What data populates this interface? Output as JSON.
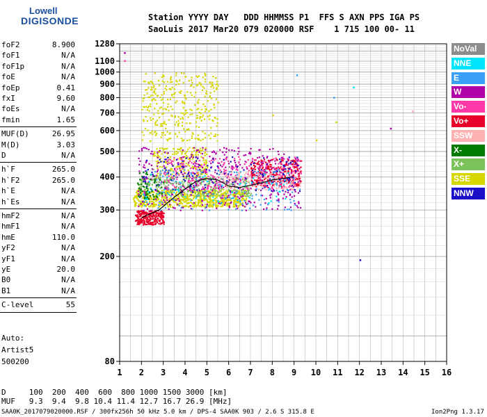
{
  "logo": {
    "line1": "Lowell",
    "line2": "DIGISONDE"
  },
  "header": {
    "row1": "Station YYYY DAY   DDD HHMMSS P1  FFS S AXN PPS IGA PS",
    "row2": "SaoLuis 2017 Mar20 079 020000 RSF    1 715 100 00- 11"
  },
  "params": [
    {
      "k": "foF2",
      "v": "8.900"
    },
    {
      "k": "foF1",
      "v": "N/A"
    },
    {
      "k": "foF1p",
      "v": "N/A"
    },
    {
      "k": "foE",
      "v": "N/A"
    },
    {
      "k": "foEp",
      "v": "0.41"
    },
    {
      "k": "fxI",
      "v": "9.60"
    },
    {
      "k": "foEs",
      "v": "N/A"
    },
    {
      "k": "fmin",
      "v": "1.65"
    },
    {
      "k": "MUF(D)",
      "v": "26.95"
    },
    {
      "k": "M(D)",
      "v": "3.03"
    },
    {
      "k": "D",
      "v": "N/A"
    },
    {
      "k": "h`F",
      "v": "265.0"
    },
    {
      "k": "h`F2",
      "v": "265.0"
    },
    {
      "k": "h`E",
      "v": "N/A"
    },
    {
      "k": "h`Es",
      "v": "N/A"
    },
    {
      "k": "hmF2",
      "v": "N/A"
    },
    {
      "k": "hmF1",
      "v": "N/A"
    },
    {
      "k": "hmE",
      "v": "110.0"
    },
    {
      "k": "yF2",
      "v": "N/A"
    },
    {
      "k": "yF1",
      "v": "N/A"
    },
    {
      "k": "yE",
      "v": "20.0"
    },
    {
      "k": "B0",
      "v": "N/A"
    },
    {
      "k": "B1",
      "v": "N/A"
    },
    {
      "k": "C-level",
      "v": "55"
    }
  ],
  "autoscaling": {
    "line1": "Auto:",
    "line2": "Artist5",
    "line3": "500200"
  },
  "legend": [
    {
      "label": "NoVal",
      "color": "#8c8c8c"
    },
    {
      "label": "NNE",
      "color": "#00e5ff"
    },
    {
      "label": "E",
      "color": "#3aa0f5"
    },
    {
      "label": "W",
      "color": "#b000a8"
    },
    {
      "label": "Vo-",
      "color": "#ff3aa8"
    },
    {
      "label": "Vo+",
      "color": "#e8002a"
    },
    {
      "label": "SSW",
      "color": "#ffb0b0"
    },
    {
      "label": "X-",
      "color": "#007a00"
    },
    {
      "label": "X+",
      "color": "#7cc25a"
    },
    {
      "label": "SSE",
      "color": "#d7d700"
    },
    {
      "label": "NNW",
      "color": "#1a10c8"
    }
  ],
  "footer": {
    "d_row": "D     100  200  400  600  800 1000 1500 3000 [km]",
    "muf_row": "MUF   9.3  9.4  9.8 10.4 11.4 12.7 16.7 26.9 [MHz]",
    "file_info": "SAA0K_2017079020000.RSF / 300fx256h 50 kHz 5.0 km / DPS-4 SAA0K 903 / 2.6 S 315.8 E",
    "version": "Ion2Png 1.3.17"
  },
  "chart_data": {
    "type": "scatter",
    "xlim": [
      1,
      16
    ],
    "ylim": [
      80,
      1280
    ],
    "x_ticks": [
      1,
      2,
      3,
      4,
      5,
      6,
      7,
      8,
      9,
      10,
      11,
      12,
      13,
      14,
      15,
      16
    ],
    "y_ticks": [
      80,
      200,
      300,
      400,
      500,
      600,
      700,
      800,
      900,
      1000,
      1100,
      1280
    ],
    "y_scale": "log",
    "grid": true,
    "trace": {
      "name": "",
      "color": "#000000",
      "x": [
        2.0,
        2.4,
        2.8,
        3.2,
        3.6,
        4.0,
        4.5,
        5.0,
        5.5,
        6.0,
        6.5,
        7.0,
        7.5,
        8.0,
        8.5,
        8.9
      ],
      "y": [
        280,
        290,
        300,
        320,
        340,
        360,
        385,
        395,
        390,
        370,
        365,
        372,
        380,
        390,
        395,
        400
      ]
    },
    "clusters": [
      {
        "series": "SSE",
        "x": [
          1.6,
          6.8
        ],
        "y": [
          310,
          360
        ],
        "n": 700
      },
      {
        "series": "SSE",
        "x": [
          2.0,
          5.5
        ],
        "y": [
          550,
          1000
        ],
        "n": 350
      },
      {
        "series": "SSE",
        "x": [
          2.5,
          5.0
        ],
        "y": [
          400,
          520
        ],
        "n": 220
      },
      {
        "series": "X+",
        "x": [
          1.8,
          7.0
        ],
        "y": [
          340,
          400
        ],
        "n": 300
      },
      {
        "series": "Vo+",
        "x": [
          1.7,
          3.0
        ],
        "y": [
          265,
          300
        ],
        "n": 250
      },
      {
        "series": "Vo+",
        "x": [
          7.0,
          9.3
        ],
        "y": [
          370,
          470
        ],
        "n": 300
      },
      {
        "series": "Vo-",
        "x": [
          3.0,
          9.3
        ],
        "y": [
          360,
          480
        ],
        "n": 300
      },
      {
        "series": "W",
        "x": [
          1.8,
          9.3
        ],
        "y": [
          300,
          520
        ],
        "n": 400
      },
      {
        "series": "NNW",
        "x": [
          2.0,
          9.3
        ],
        "y": [
          350,
          480
        ],
        "n": 150
      },
      {
        "series": "E",
        "x": [
          2.0,
          9.3
        ],
        "y": [
          300,
          430
        ],
        "n": 150
      },
      {
        "series": "SSW",
        "x": [
          5.5,
          9.3
        ],
        "y": [
          360,
          420
        ],
        "n": 120
      },
      {
        "series": "X-",
        "x": [
          1.8,
          3.0
        ],
        "y": [
          330,
          420
        ],
        "n": 60
      },
      {
        "series": "NNE",
        "x": [
          2.0,
          9.0
        ],
        "y": [
          320,
          420
        ],
        "n": 60
      },
      {
        "series": "NoVal",
        "x": [
          2.5,
          7.0
        ],
        "y": [
          350,
          450
        ],
        "n": 40
      }
    ],
    "isolated_points": [
      {
        "x": 9.1,
        "y": 980,
        "series": "E"
      },
      {
        "x": 10.8,
        "y": 805,
        "series": "E"
      },
      {
        "x": 11.7,
        "y": 880,
        "series": "NNE"
      },
      {
        "x": 10.9,
        "y": 650,
        "series": "SSE"
      },
      {
        "x": 12.0,
        "y": 195,
        "series": "NNW"
      },
      {
        "x": 13.4,
        "y": 615,
        "series": "W"
      },
      {
        "x": 14.4,
        "y": 715,
        "series": "SSW"
      },
      {
        "x": 1.2,
        "y": 1190,
        "series": "W"
      },
      {
        "x": 1.2,
        "y": 1110,
        "series": "Vo-"
      },
      {
        "x": 10.0,
        "y": 555,
        "series": "SSE"
      },
      {
        "x": 8.0,
        "y": 690,
        "series": "SSE"
      }
    ]
  }
}
